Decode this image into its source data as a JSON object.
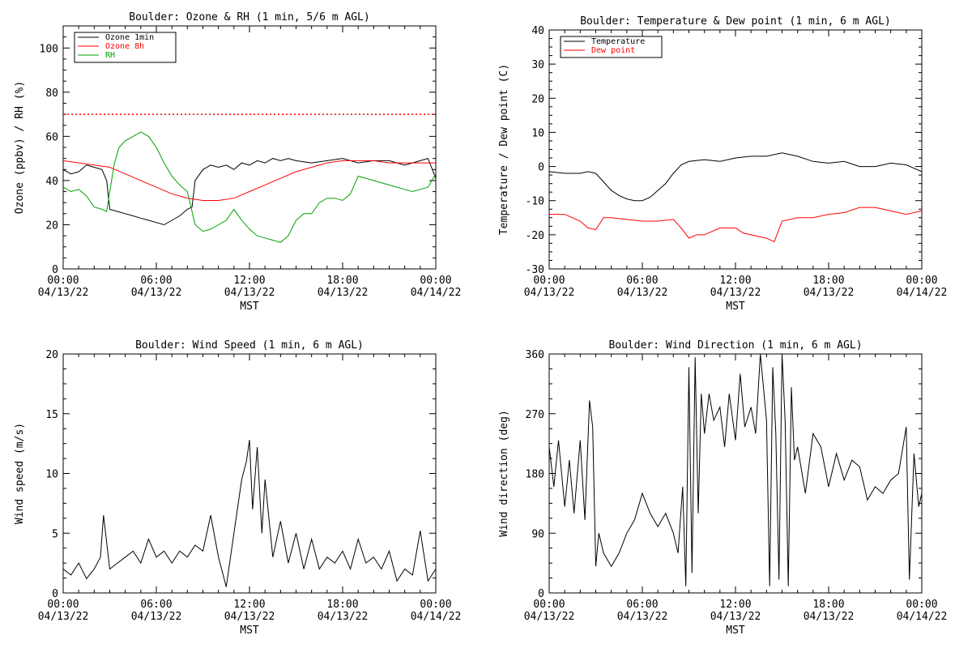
{
  "chart_data": [
    {
      "type": "line",
      "title": "Boulder: Ozone & RH (1 min, 5/6 m AGL)",
      "xlabel": "MST",
      "ylabel": "Ozone (ppbv) / RH (%)",
      "ylim": [
        0,
        110
      ],
      "yticks": [
        0,
        20,
        40,
        60,
        80,
        100
      ],
      "xticks": [
        "00:00|04/13/22",
        "06:00|04/13/22",
        "12:00|04/13/22",
        "18:00|04/13/22",
        "00:00|04/14/22"
      ],
      "legend": "top-left",
      "reference_line": {
        "y": 70,
        "color": "#ff0000",
        "style": "dotted"
      },
      "series": [
        {
          "name": "Ozone 1min",
          "color": "#000000",
          "x": [
            0,
            0.5,
            1,
            1.5,
            2,
            2.5,
            2.8,
            3,
            3.5,
            4,
            4.5,
            5,
            5.5,
            6,
            6.5,
            7,
            7.5,
            8,
            8.3,
            8.5,
            9,
            9.5,
            10,
            10.5,
            11,
            11.5,
            12,
            12.5,
            13,
            13.5,
            14,
            14.5,
            15,
            16,
            17,
            18,
            19,
            20,
            21,
            22,
            22.5,
            23,
            23.5,
            24
          ],
          "y": [
            45,
            43,
            44,
            47,
            46,
            45,
            40,
            27,
            26,
            25,
            24,
            23,
            22,
            21,
            20,
            22,
            24,
            27,
            28,
            40,
            45,
            47,
            46,
            47,
            45,
            48,
            47,
            49,
            48,
            50,
            49,
            50,
            49,
            48,
            49,
            50,
            48,
            49,
            49,
            47,
            48,
            49,
            50,
            41
          ]
        },
        {
          "name": "Ozone 8h",
          "color": "#ff0000",
          "x": [
            0,
            1,
            2,
            3,
            4,
            5,
            6,
            7,
            8,
            9,
            10,
            11,
            12,
            13,
            14,
            15,
            16,
            17,
            18,
            19,
            20,
            21,
            22,
            23,
            24
          ],
          "y": [
            49,
            48,
            47,
            46,
            43,
            40,
            37,
            34,
            32,
            31,
            31,
            32,
            35,
            38,
            41,
            44,
            46,
            48,
            49,
            49,
            49,
            48,
            48,
            48,
            48
          ]
        },
        {
          "name": "RH",
          "color": "#00a000",
          "x": [
            0,
            0.5,
            1,
            1.5,
            2,
            2.5,
            2.8,
            3,
            3.3,
            3.6,
            4,
            4.5,
            5,
            5.5,
            6,
            6.5,
            7,
            7.5,
            8,
            8.5,
            9,
            9.5,
            10,
            10.5,
            11,
            11.5,
            12,
            12.5,
            13,
            13.5,
            14,
            14.5,
            15,
            15.5,
            16,
            16.5,
            17,
            17.5,
            18,
            18.5,
            19,
            20,
            21,
            22,
            22.5,
            23,
            23.5,
            24
          ],
          "y": [
            37,
            35,
            36,
            33,
            28,
            27,
            26,
            35,
            48,
            55,
            58,
            60,
            62,
            60,
            55,
            48,
            42,
            38,
            35,
            20,
            17,
            18,
            20,
            22,
            27,
            22,
            18,
            15,
            14,
            13,
            12,
            15,
            22,
            25,
            25,
            30,
            32,
            32,
            31,
            34,
            42,
            40,
            38,
            36,
            35,
            36,
            37,
            43
          ]
        }
      ]
    },
    {
      "type": "line",
      "title": "Boulder: Temperature & Dew point (1 min, 6 m AGL)",
      "xlabel": "MST",
      "ylabel": "Temperature / Dew point (C)",
      "ylim": [
        -30,
        40
      ],
      "yticks": [
        -30,
        -20,
        -10,
        0,
        10,
        20,
        30,
        40
      ],
      "xticks": [
        "00:00|04/13/22",
        "06:00|04/13/22",
        "12:00|04/13/22",
        "18:00|04/13/22",
        "00:00|04/14/22"
      ],
      "legend": "top-left",
      "series": [
        {
          "name": "Temperature",
          "color": "#000000",
          "x": [
            0,
            1,
            2,
            2.5,
            3,
            3.5,
            4,
            4.5,
            5,
            5.5,
            6,
            6.5,
            7,
            7.5,
            8,
            8.5,
            9,
            10,
            11,
            12,
            13,
            14,
            15,
            16,
            17,
            18,
            19,
            20,
            21,
            22,
            23,
            24
          ],
          "y": [
            -1.5,
            -2,
            -2,
            -1.5,
            -2,
            -4.5,
            -7,
            -8.5,
            -9.5,
            -10,
            -10,
            -9,
            -7,
            -5,
            -2,
            0.5,
            1.5,
            2,
            1.5,
            2.5,
            3,
            3,
            4,
            3,
            1.5,
            1,
            1.5,
            0,
            0,
            1,
            0.5,
            -1.5
          ]
        },
        {
          "name": "Dew point",
          "color": "#ff0000",
          "x": [
            0,
            1,
            2,
            2.5,
            3,
            3.5,
            4,
            5,
            6,
            7,
            8,
            8.5,
            9,
            9.5,
            10,
            11,
            12,
            12.5,
            13,
            14,
            14.5,
            15,
            16,
            17,
            18,
            19,
            20,
            21,
            22,
            23,
            24
          ],
          "y": [
            -14,
            -14,
            -16,
            -18,
            -18.5,
            -15,
            -15,
            -15.5,
            -16,
            -16,
            -15.5,
            -18,
            -21,
            -20,
            -20,
            -18,
            -18,
            -19.5,
            -20,
            -21,
            -22,
            -16,
            -15,
            -15,
            -14,
            -13.5,
            -12,
            -12,
            -13,
            -14,
            -13
          ]
        }
      ]
    },
    {
      "type": "line",
      "title": "Boulder: Wind Speed (1 min, 6 m AGL)",
      "xlabel": "MST",
      "ylabel": "Wind speed (m/s)",
      "ylim": [
        0,
        20
      ],
      "yticks": [
        0,
        5,
        10,
        15,
        20
      ],
      "xticks": [
        "00:00|04/13/22",
        "06:00|04/13/22",
        "12:00|04/13/22",
        "18:00|04/13/22",
        "00:00|04/14/22"
      ],
      "series": [
        {
          "name": "",
          "color": "#000000",
          "x": [
            0,
            0.5,
            1,
            1.5,
            2,
            2.4,
            2.6,
            3,
            3.5,
            4,
            4.5,
            5,
            5.5,
            6,
            6.5,
            7,
            7.5,
            8,
            8.5,
            9,
            9.5,
            10,
            10.5,
            11,
            11.5,
            11.8,
            12,
            12.2,
            12.5,
            12.8,
            13,
            13.5,
            14,
            14.5,
            15,
            15.5,
            16,
            16.5,
            17,
            17.5,
            18,
            18.5,
            19,
            19.5,
            20,
            20.5,
            21,
            21.5,
            22,
            22.5,
            23,
            23.5,
            24
          ],
          "y": [
            2,
            1.5,
            2.5,
            1.2,
            2,
            3,
            6.5,
            2,
            2.5,
            3,
            3.5,
            2.5,
            4.5,
            3,
            3.5,
            2.5,
            3.5,
            3,
            4,
            3.5,
            6.5,
            3,
            0.5,
            5,
            9.5,
            11,
            12.8,
            7,
            12.2,
            5,
            9.5,
            3,
            6,
            2.5,
            5,
            2,
            4.5,
            2,
            3,
            2.5,
            3.5,
            2,
            4.5,
            2.5,
            3,
            2,
            3.5,
            1,
            2,
            1.5,
            5.2,
            1,
            2
          ]
        }
      ]
    },
    {
      "type": "line",
      "title": "Boulder: Wind Direction (1 min, 6 m AGL)",
      "xlabel": "MST",
      "ylabel": "Wind direction (deg)",
      "ylim": [
        0,
        360
      ],
      "yticks": [
        0,
        90,
        180,
        270
      ],
      "ytick_top": 360,
      "xticks": [
        "00:00|04/13/22",
        "06:00|04/13/22",
        "12:00|04/13/22",
        "18:00|04/13/22",
        "00:00|04/14/22"
      ],
      "series": [
        {
          "name": "",
          "color": "#000000",
          "x": [
            0,
            0.3,
            0.6,
            1,
            1.3,
            1.6,
            2,
            2.3,
            2.6,
            2.8,
            3,
            3.2,
            3.5,
            4,
            4.5,
            5,
            5.5,
            6,
            6.5,
            7,
            7.5,
            8,
            8.3,
            8.6,
            8.8,
            9,
            9.2,
            9.4,
            9.6,
            9.8,
            10,
            10.3,
            10.6,
            11,
            11.3,
            11.6,
            12,
            12.3,
            12.6,
            13,
            13.3,
            13.6,
            14,
            14.2,
            14.4,
            14.6,
            14.8,
            15,
            15.2,
            15.4,
            15.6,
            15.8,
            16,
            16.5,
            17,
            17.5,
            18,
            18.5,
            19,
            19.5,
            20,
            20.5,
            21,
            21.5,
            22,
            22.5,
            23,
            23.2,
            23.5,
            23.8,
            24
          ],
          "y": [
            220,
            160,
            230,
            130,
            200,
            120,
            230,
            110,
            290,
            250,
            40,
            90,
            60,
            40,
            60,
            90,
            110,
            150,
            120,
            100,
            120,
            90,
            60,
            160,
            10,
            340,
            30,
            355,
            120,
            300,
            240,
            300,
            260,
            280,
            220,
            300,
            230,
            330,
            250,
            280,
            240,
            360,
            260,
            10,
            340,
            240,
            20,
            360,
            260,
            10,
            310,
            200,
            220,
            150,
            240,
            220,
            160,
            210,
            170,
            200,
            190,
            140,
            160,
            150,
            170,
            180,
            250,
            20,
            210,
            130,
            150
          ]
        }
      ]
    }
  ]
}
